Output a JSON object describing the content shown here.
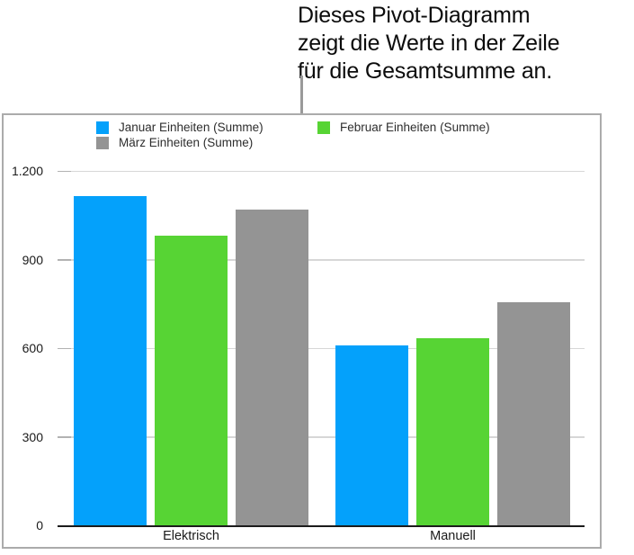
{
  "caption": {
    "lines": [
      "Dieses Pivot-Diagramm",
      "zeigt die Werte in der Zeile",
      "für die Gesamtsumme an."
    ]
  },
  "chart_data": {
    "type": "bar",
    "title": "",
    "xlabel": "",
    "ylabel": "",
    "categories": [
      "Elektrisch",
      "Manuell"
    ],
    "series": [
      {
        "name": "Januar Einheiten (Summe)",
        "color": "#04a1fb",
        "values": [
          1115,
          610
        ]
      },
      {
        "name": "Februar Einheiten (Summe)",
        "color": "#57d434",
        "values": [
          980,
          635
        ]
      },
      {
        "name": "März Einheiten (Summe)",
        "color": "#949494",
        "values": [
          1070,
          755
        ]
      }
    ],
    "ylim": [
      0,
      1200
    ],
    "yticks": [
      {
        "value": 0,
        "label": "0"
      },
      {
        "value": 300,
        "label": "300"
      },
      {
        "value": 600,
        "label": "600"
      },
      {
        "value": 900,
        "label": "900"
      },
      {
        "value": 1200,
        "label": "1.200"
      }
    ],
    "legend_position": "top",
    "grid": "horizontal"
  },
  "colors": {
    "frame_border": "#ababab",
    "gridline": "#d7d7d7",
    "axis_line": "#1c1c1c",
    "callout_line": "#9a9a9a"
  }
}
